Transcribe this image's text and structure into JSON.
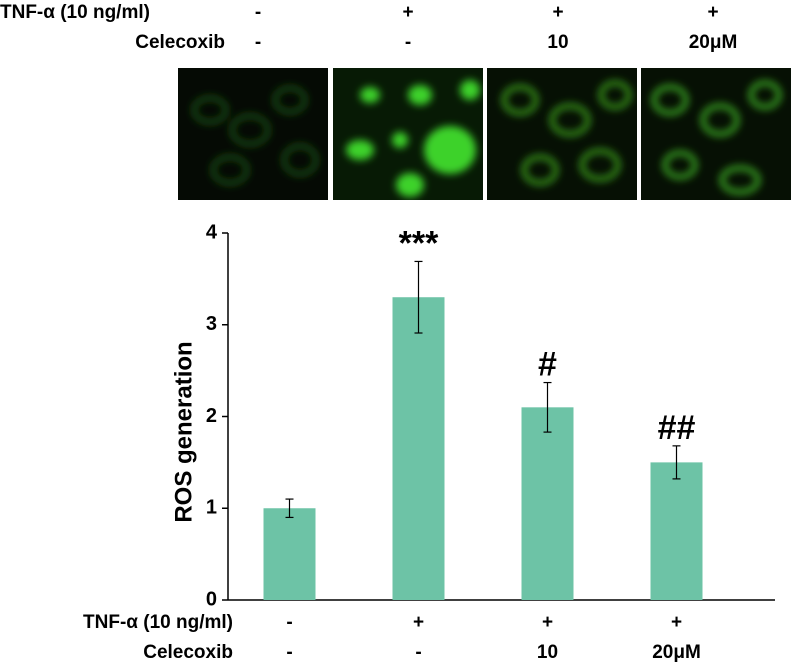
{
  "chart_data": {
    "type": "bar",
    "ylabel": "ROS generation",
    "rows": [
      {
        "label": "TNF-α (10 ng/ml)",
        "entries": [
          "-",
          "+",
          "+",
          "+"
        ]
      },
      {
        "label": "Celecoxib",
        "entries": [
          "-",
          "-",
          "10",
          "20μM"
        ]
      }
    ],
    "values": [
      1.0,
      3.3,
      2.1,
      1.5
    ],
    "errors": [
      0.1,
      0.39,
      0.27,
      0.18
    ],
    "annotations": [
      null,
      "***",
      "#",
      "##"
    ],
    "color": "#6dc3a6",
    "ylim": [
      0,
      4
    ],
    "yticks": [
      0,
      1,
      2,
      3,
      4
    ]
  }
}
